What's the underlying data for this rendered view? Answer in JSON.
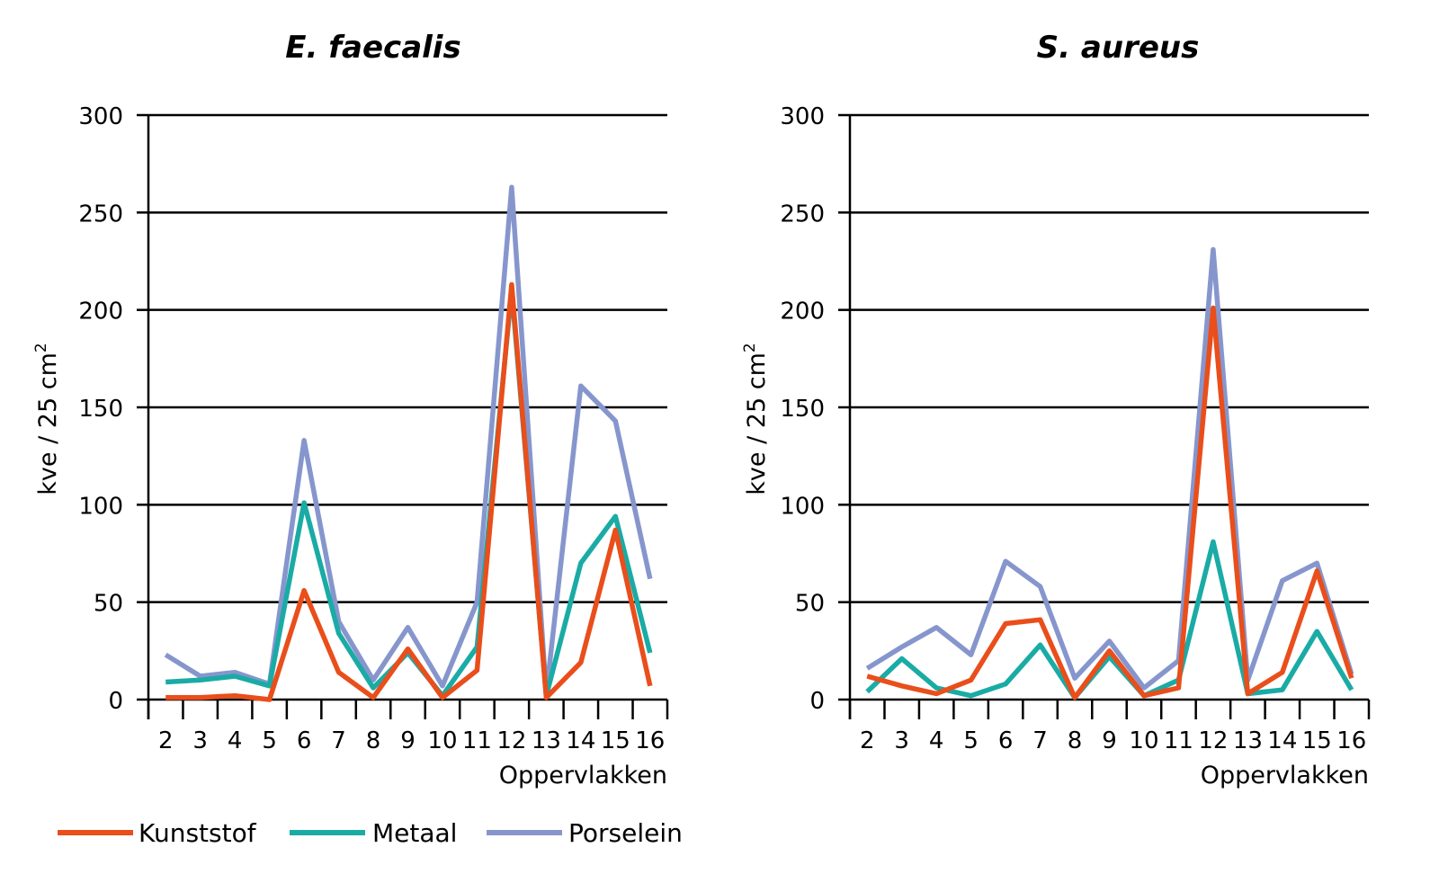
{
  "chart_data": [
    {
      "type": "line",
      "title": "E. faecalis",
      "xlabel": "Oppervlakken",
      "ylabel": "kve / 25 cm",
      "ylabel_superscript": "2",
      "ylim": [
        0,
        300
      ],
      "yticks": [
        "0",
        "50",
        "100",
        "150",
        "200",
        "250",
        "300"
      ],
      "grid": true,
      "categories": [
        "2",
        "3",
        "4",
        "5",
        "6",
        "7",
        "8",
        "9",
        "10",
        "11",
        "12",
        "13",
        "14",
        "15",
        "16"
      ],
      "series": [
        {
          "name": "Kunststof",
          "values": [
            1,
            1,
            2,
            0,
            56,
            14,
            1,
            26,
            1,
            15,
            213,
            1,
            19,
            87,
            7
          ]
        },
        {
          "name": "Metaal",
          "values": [
            9,
            10,
            12,
            7,
            101,
            34,
            6,
            24,
            2,
            27,
            210,
            2,
            70,
            94,
            24
          ]
        },
        {
          "name": "Porselein",
          "values": [
            23,
            12,
            14,
            8,
            133,
            40,
            10,
            37,
            7,
            50,
            263,
            3,
            161,
            143,
            62
          ]
        }
      ]
    },
    {
      "type": "line",
      "title": "S. aureus",
      "xlabel": "Oppervlakken",
      "ylabel": "kve / 25 cm",
      "ylabel_superscript": "2",
      "ylim": [
        0,
        300
      ],
      "yticks": [
        "0",
        "50",
        "100",
        "150",
        "200",
        "250",
        "300"
      ],
      "grid": true,
      "categories": [
        "2",
        "3",
        "4",
        "5",
        "6",
        "7",
        "8",
        "9",
        "10",
        "11",
        "12",
        "13",
        "14",
        "15",
        "16"
      ],
      "series": [
        {
          "name": "Kunststof",
          "values": [
            12,
            7,
            3,
            10,
            39,
            41,
            1,
            25,
            2,
            6,
            201,
            3,
            14,
            66,
            11
          ]
        },
        {
          "name": "Metaal",
          "values": [
            4,
            21,
            6,
            2,
            8,
            28,
            1,
            22,
            2,
            10,
            81,
            3,
            5,
            35,
            5
          ]
        },
        {
          "name": "Porselein",
          "values": [
            16,
            27,
            37,
            23,
            71,
            58,
            11,
            30,
            6,
            20,
            231,
            10,
            61,
            70,
            13
          ]
        }
      ]
    }
  ],
  "legend": [
    {
      "name": "Kunststof",
      "color": "#e94e1b"
    },
    {
      "name": "Metaal",
      "color": "#1aaba5"
    },
    {
      "name": "Porselein",
      "color": "#8696cd"
    }
  ]
}
